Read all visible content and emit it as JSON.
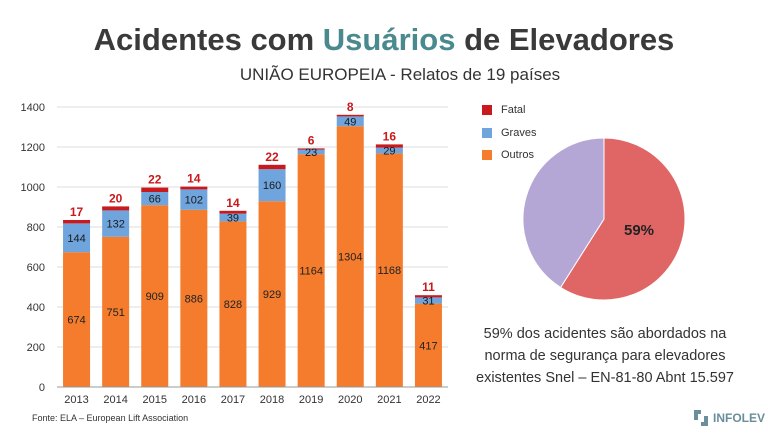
{
  "header": {
    "title_part1": "Acidentes com ",
    "title_accent": "Usuários",
    "title_part2": " de Elevadores",
    "subtitle": "UNIÃO EUROPEIA  - Relatos de 19 países"
  },
  "colors": {
    "outros": "#f47c2c",
    "graves": "#6fa4dc",
    "fatal": "#c9191c",
    "pie_main": "#e06666",
    "pie_other": "#b4a7d6",
    "accent": "#4a8a8f"
  },
  "chart_data": [
    {
      "type": "bar",
      "stacked": true,
      "categories": [
        "2013",
        "2014",
        "2015",
        "2016",
        "2017",
        "2018",
        "2019",
        "2020",
        "2021",
        "2022"
      ],
      "series": [
        {
          "name": "Outros",
          "values": [
            674,
            751,
            909,
            886,
            828,
            929,
            1164,
            1304,
            1168,
            417
          ]
        },
        {
          "name": "Graves",
          "values": [
            144,
            132,
            66,
            102,
            39,
            160,
            23,
            49,
            29,
            31
          ]
        },
        {
          "name": "Fatal",
          "values": [
            17,
            20,
            22,
            14,
            14,
            22,
            6,
            8,
            16,
            11
          ]
        }
      ],
      "ylim": [
        0,
        1400
      ],
      "yticks": [
        0,
        200,
        400,
        600,
        800,
        1000,
        1200,
        1400
      ],
      "grid": true,
      "legend": "right"
    },
    {
      "type": "pie",
      "slices": [
        {
          "label": "59%",
          "value": 59
        },
        {
          "label": "",
          "value": 41
        }
      ]
    }
  ],
  "pie_note": "59% dos acidentes são abordados na norma de segurança para elevadores existentes Snel – EN-81-80 Abnt 15.597",
  "source": "Fonte: ELA – European Lift Association",
  "logo_text": "INFOLEV"
}
